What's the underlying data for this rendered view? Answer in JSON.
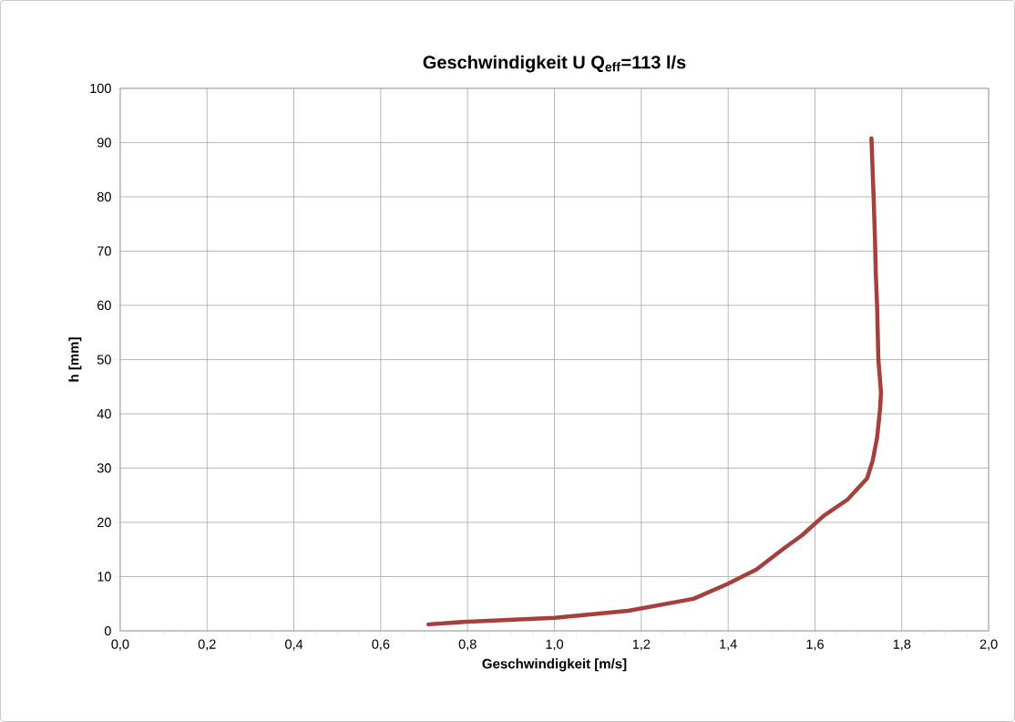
{
  "chart_data": {
    "type": "line",
    "title": "Geschwindigkeit U    Q$_{eff}$=113 l/s",
    "xlabel": "Geschwindigkeit [m/s]",
    "ylabel": "h [mm]",
    "xlim": [
      0,
      2
    ],
    "ylim": [
      0,
      100
    ],
    "xticks": [
      {
        "value": 0,
        "label": "0,0"
      },
      {
        "value": 0.2,
        "label": "0,2"
      },
      {
        "value": 0.4,
        "label": "0,4"
      },
      {
        "value": 0.6,
        "label": "0,6"
      },
      {
        "value": 0.8,
        "label": "0,8"
      },
      {
        "value": 1.0,
        "label": "1,0"
      },
      {
        "value": 1.2,
        "label": "1,2"
      },
      {
        "value": 1.4,
        "label": "1,4"
      },
      {
        "value": 1.6,
        "label": "1,6"
      },
      {
        "value": 1.8,
        "label": "1,8"
      },
      {
        "value": 2.0,
        "label": "2,0"
      }
    ],
    "yticks": [
      0,
      10,
      20,
      30,
      40,
      50,
      60,
      70,
      80,
      90,
      100
    ],
    "grid": true,
    "marker": "none",
    "line_style": "solid",
    "series": [
      {
        "color": "#a5403c",
        "x": [
          0.71,
          0.8,
          1.0,
          1.17,
          1.32,
          1.4,
          1.465,
          1.53,
          1.57,
          1.62,
          1.675,
          1.72,
          1.733,
          1.743,
          1.75,
          1.752,
          1.746,
          1.743,
          1.74,
          1.738,
          1.735,
          1.73
        ],
        "values": [
          1.2,
          1.7,
          2.4,
          3.7,
          5.9,
          8.7,
          11.3,
          15.3,
          17.6,
          21.2,
          24.2,
          28.1,
          31.4,
          35.6,
          41.0,
          44.0,
          50.0,
          60.0,
          66.0,
          72.6,
          80.0,
          90.8
        ]
      }
    ]
  }
}
